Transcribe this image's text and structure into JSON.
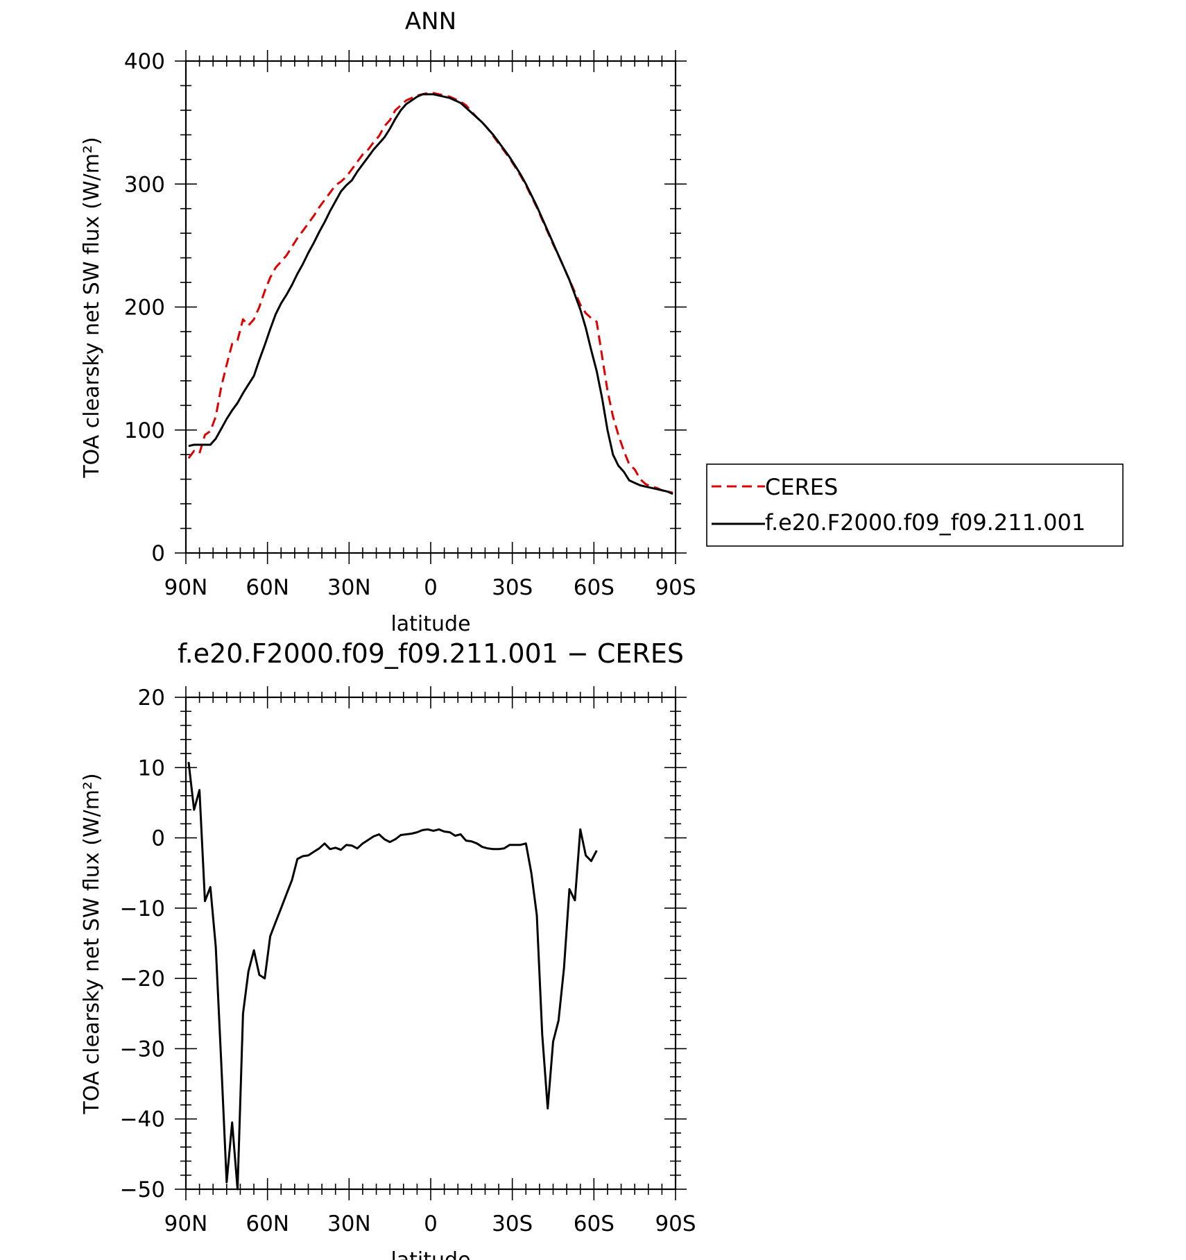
{
  "chart_data": [
    {
      "type": "line",
      "title": "ANN",
      "xlabel": "latitude",
      "ylabel": "TOA clearsky net SW flux (W/m²)",
      "xlim": [
        90,
        -90
      ],
      "ylim": [
        0,
        400
      ],
      "x_tick_values": [
        90,
        60,
        30,
        0,
        -30,
        -60,
        -90
      ],
      "x_tick_labels": [
        "90N",
        "60N",
        "30N",
        "0",
        "30S",
        "60S",
        "90S"
      ],
      "y_tick_values": [
        0,
        100,
        200,
        300,
        400
      ],
      "y_tick_labels": [
        "0",
        "100",
        "200",
        "300",
        "400"
      ],
      "legend_placement": "right",
      "series": [
        {
          "name": "CERES",
          "color": "#e00000",
          "dash": "dashed",
          "points": [
            [
              89,
              77
            ],
            [
              87,
              83
            ],
            [
              85,
              81
            ],
            [
              83,
              96
            ],
            [
              81,
              99
            ],
            [
              79,
              111
            ],
            [
              77,
              135
            ],
            [
              75,
              153
            ],
            [
              73,
              170
            ],
            [
              71,
              173
            ],
            [
              69,
              190
            ],
            [
              67,
              185
            ],
            [
              65,
              190
            ],
            [
              63,
              200
            ],
            [
              61,
              213
            ],
            [
              59,
              224
            ],
            [
              57,
              232
            ],
            [
              55,
              237
            ],
            [
              53,
              242
            ],
            [
              51,
              249
            ],
            [
              49,
              256
            ],
            [
              47,
              262
            ],
            [
              45,
              268
            ],
            [
              43,
              274
            ],
            [
              41,
              281
            ],
            [
              39,
              287
            ],
            [
              37,
              293
            ],
            [
              35,
              299
            ],
            [
              33,
              302
            ],
            [
              31,
              306
            ],
            [
              29,
              312
            ],
            [
              27,
              318
            ],
            [
              25,
              324
            ],
            [
              23,
              328
            ],
            [
              21,
              334
            ],
            [
              19,
              339
            ],
            [
              17,
              347
            ],
            [
              15,
              352
            ],
            [
              13,
              360
            ],
            [
              11,
              364
            ],
            [
              9,
              368
            ],
            [
              7,
              370
            ],
            [
              5,
              372
            ],
            [
              3,
              373
            ],
            [
              1,
              374
            ],
            [
              -1,
              374
            ],
            [
              -3,
              373
            ],
            [
              -5,
              372
            ],
            [
              -7,
              371
            ],
            [
              -9,
              369
            ],
            [
              -11,
              367
            ],
            [
              -13,
              364
            ],
            [
              -15,
              359
            ],
            [
              -17,
              354
            ],
            [
              -19,
              350
            ],
            [
              -21,
              345
            ],
            [
              -23,
              339
            ],
            [
              -25,
              333
            ],
            [
              -27,
              327
            ],
            [
              -29,
              321
            ],
            [
              -31,
              314
            ],
            [
              -33,
              307
            ],
            [
              -35,
              299
            ],
            [
              -37,
              290
            ],
            [
              -39,
              281
            ],
            [
              -41,
              271
            ],
            [
              -43,
              261
            ],
            [
              -45,
              251
            ],
            [
              -47,
              242
            ],
            [
              -49,
              232
            ],
            [
              -51,
              222
            ],
            [
              -53,
              212
            ],
            [
              -55,
              202
            ],
            [
              -57,
              195
            ],
            [
              -59,
              191
            ],
            [
              -61,
              188
            ],
            [
              -63,
              160
            ],
            [
              -65,
              132
            ],
            [
              -67,
              111
            ],
            [
              -69,
              96
            ],
            [
              -71,
              83
            ],
            [
              -73,
              72
            ],
            [
              -75,
              68
            ],
            [
              -77,
              60
            ],
            [
              -79,
              56
            ],
            [
              -81,
              54
            ],
            [
              -83,
              53
            ],
            [
              -85,
              51
            ],
            [
              -87,
              50
            ],
            [
              -89,
              49
            ]
          ]
        },
        {
          "name": "f.e20.F2000.f09_f09.211.001",
          "color": "#000000",
          "dash": "solid",
          "points": [
            [
              89,
              87
            ],
            [
              87,
              88
            ],
            [
              85,
              88
            ],
            [
              83,
              88
            ],
            [
              81,
              88
            ],
            [
              79,
              93
            ],
            [
              77,
              101
            ],
            [
              75,
              109
            ],
            [
              73,
              116
            ],
            [
              71,
              122
            ],
            [
              69,
              130
            ],
            [
              67,
              137
            ],
            [
              65,
              144
            ],
            [
              63,
              157
            ],
            [
              61,
              169
            ],
            [
              59,
              182
            ],
            [
              57,
              194
            ],
            [
              55,
              203
            ],
            [
              53,
              210
            ],
            [
              51,
              218
            ],
            [
              49,
              227
            ],
            [
              47,
              235
            ],
            [
              45,
              244
            ],
            [
              43,
              252
            ],
            [
              41,
              261
            ],
            [
              39,
              269
            ],
            [
              37,
              278
            ],
            [
              35,
              286
            ],
            [
              33,
              294
            ],
            [
              31,
              299
            ],
            [
              29,
              303
            ],
            [
              27,
              310
            ],
            [
              25,
              316
            ],
            [
              23,
              322
            ],
            [
              21,
              328
            ],
            [
              19,
              333
            ],
            [
              17,
              338
            ],
            [
              15,
              345
            ],
            [
              13,
              353
            ],
            [
              11,
              360
            ],
            [
              9,
              365
            ],
            [
              7,
              368
            ],
            [
              5,
              371
            ],
            [
              3,
              373
            ],
            [
              1,
              373
            ],
            [
              -1,
              373
            ],
            [
              -3,
              372
            ],
            [
              -5,
              371
            ],
            [
              -7,
              370
            ],
            [
              -9,
              368
            ],
            [
              -11,
              366
            ],
            [
              -13,
              362
            ],
            [
              -15,
              358
            ],
            [
              -17,
              354
            ],
            [
              -19,
              350
            ],
            [
              -21,
              345
            ],
            [
              -23,
              340
            ],
            [
              -25,
              334
            ],
            [
              -27,
              328
            ],
            [
              -29,
              322
            ],
            [
              -31,
              315
            ],
            [
              -33,
              308
            ],
            [
              -35,
              300
            ],
            [
              -37,
              291
            ],
            [
              -39,
              282
            ],
            [
              -41,
              272
            ],
            [
              -43,
              262
            ],
            [
              -45,
              252
            ],
            [
              -47,
              242
            ],
            [
              -49,
              232
            ],
            [
              -51,
              222
            ],
            [
              -53,
              210
            ],
            [
              -55,
              198
            ],
            [
              -57,
              183
            ],
            [
              -59,
              165
            ],
            [
              -61,
              148
            ],
            [
              -63,
              126
            ],
            [
              -65,
              100
            ],
            [
              -67,
              80
            ],
            [
              -69,
              71
            ],
            [
              -71,
              66
            ],
            [
              -73,
              59
            ],
            [
              -75,
              57
            ],
            [
              -77,
              55
            ],
            [
              -79,
              54
            ],
            [
              -81,
              53
            ],
            [
              -83,
              52
            ],
            [
              -85,
              51
            ],
            [
              -87,
              50
            ],
            [
              -89,
              48
            ]
          ]
        }
      ]
    },
    {
      "type": "line",
      "title": "f.e20.F2000.f09_f09.211.001 − CERES",
      "xlabel": "latitude",
      "ylabel": "TOA clearsky net SW flux (W/m²)",
      "xlim": [
        90,
        -90
      ],
      "ylim": [
        -50,
        20
      ],
      "x_tick_values": [
        90,
        60,
        30,
        0,
        -30,
        -60,
        -90
      ],
      "x_tick_labels": [
        "90N",
        "60N",
        "30N",
        "0",
        "30S",
        "60S",
        "90S"
      ],
      "y_tick_values": [
        -50,
        -40,
        -30,
        -20,
        -10,
        0,
        10,
        20
      ],
      "y_tick_labels": [
        "−50",
        "−40",
        "−30",
        "−20",
        "−10",
        "0",
        "10",
        "20"
      ],
      "series": [
        {
          "color": "#000000",
          "dash": "solid",
          "points": [
            [
              89,
              10.8
            ],
            [
              87,
              4.0
            ],
            [
              85,
              6.8
            ],
            [
              83,
              -9.0
            ],
            [
              81,
              -7.0
            ],
            [
              79,
              -15.5
            ],
            [
              77,
              -32
            ],
            [
              75,
              -49
            ],
            [
              73,
              -40.5
            ],
            [
              71,
              -50
            ],
            [
              69,
              -25
            ],
            [
              67,
              -19
            ],
            [
              65,
              -16
            ],
            [
              63,
              -19.5
            ],
            [
              61,
              -20
            ],
            [
              59,
              -14
            ],
            [
              57,
              -12
            ],
            [
              55,
              -10
            ],
            [
              53,
              -8
            ],
            [
              51,
              -6
            ],
            [
              49,
              -3
            ],
            [
              47,
              -2.6
            ],
            [
              45,
              -2.5
            ],
            [
              43,
              -2.0
            ],
            [
              41,
              -1.5
            ],
            [
              39,
              -0.8
            ],
            [
              37,
              -1.6
            ],
            [
              35,
              -1.4
            ],
            [
              33,
              -1.7
            ],
            [
              31,
              -1.0
            ],
            [
              29,
              -1.1
            ],
            [
              27,
              -1.5
            ],
            [
              25,
              -0.8
            ],
            [
              23,
              -0.3
            ],
            [
              21,
              0.2
            ],
            [
              19,
              0.5
            ],
            [
              17,
              -0.2
            ],
            [
              15,
              -0.6
            ],
            [
              13,
              -0.2
            ],
            [
              11,
              0.4
            ],
            [
              9,
              0.5
            ],
            [
              7,
              0.6
            ],
            [
              5,
              0.8
            ],
            [
              3,
              1.1
            ],
            [
              1,
              1.2
            ],
            [
              -1,
              1.0
            ],
            [
              -3,
              1.2
            ],
            [
              -5,
              0.9
            ],
            [
              -7,
              0.8
            ],
            [
              -9,
              0.3
            ],
            [
              -11,
              0.5
            ],
            [
              -13,
              -0.4
            ],
            [
              -15,
              -0.5
            ],
            [
              -17,
              -0.8
            ],
            [
              -19,
              -1.3
            ],
            [
              -21,
              -1.5
            ],
            [
              -23,
              -1.6
            ],
            [
              -25,
              -1.6
            ],
            [
              -27,
              -1.5
            ],
            [
              -29,
              -1.0
            ],
            [
              -31,
              -1.0
            ],
            [
              -33,
              -1.0
            ],
            [
              -35,
              -0.8
            ],
            [
              -37,
              -5
            ],
            [
              -39,
              -11
            ],
            [
              -41,
              -28
            ],
            [
              -43,
              -38.5
            ],
            [
              -45,
              -29
            ],
            [
              -47,
              -26
            ],
            [
              -49,
              -18.5
            ],
            [
              -51,
              -7.3
            ],
            [
              -53,
              -8.9
            ],
            [
              -55,
              1.2
            ],
            [
              -57,
              -2.5
            ],
            [
              -59,
              -3.3
            ],
            [
              -61,
              -1.8
            ]
          ]
        }
      ]
    }
  ],
  "legend": {
    "items": [
      {
        "label": "CERES"
      },
      {
        "label": "f.e20.F2000.f09_f09.211.001"
      }
    ]
  }
}
